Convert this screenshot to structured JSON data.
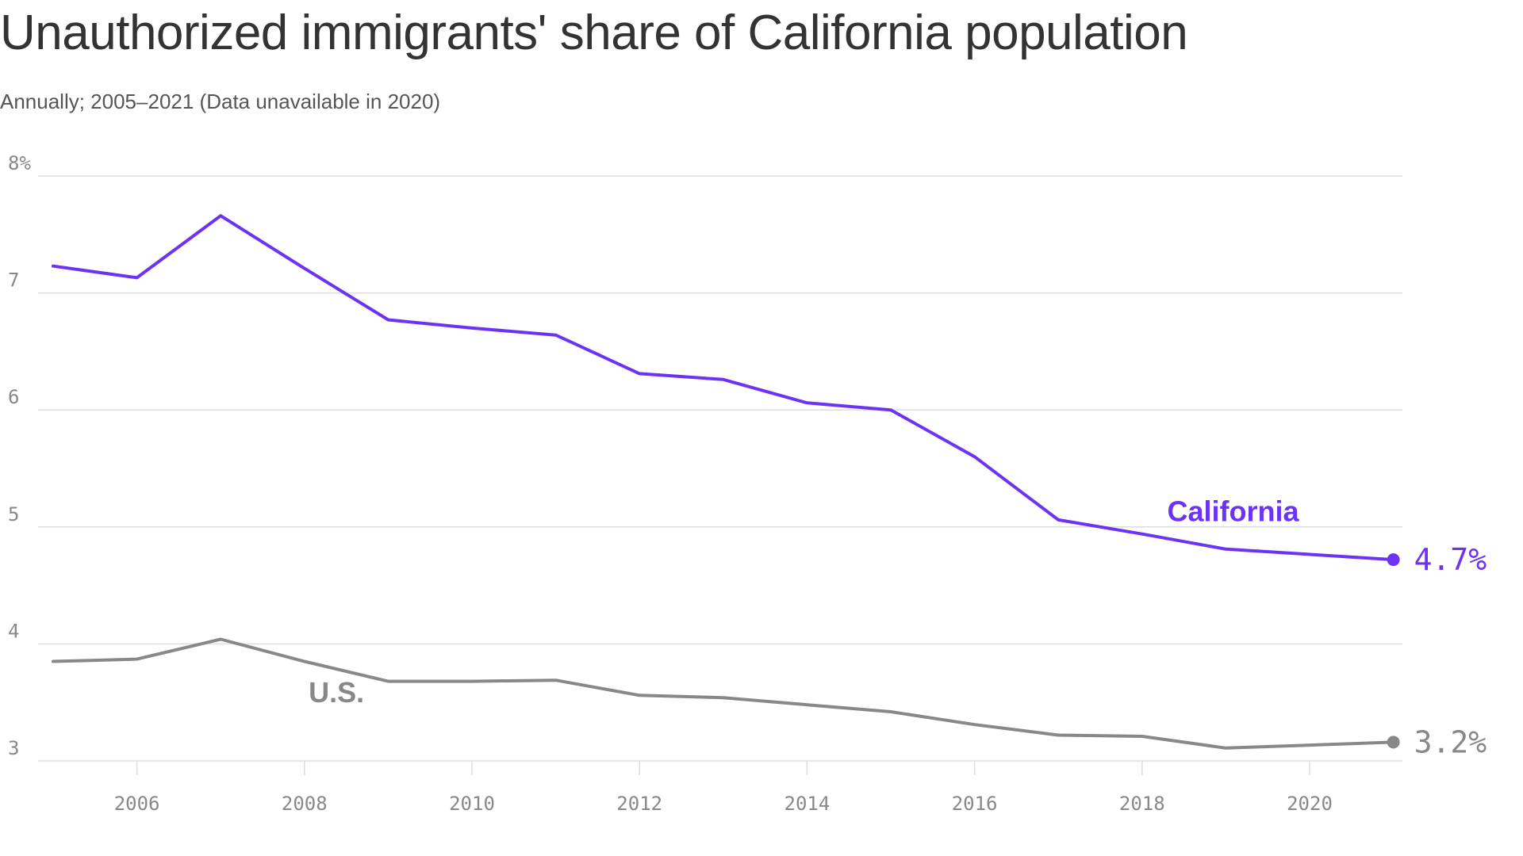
{
  "header": {
    "title": "Unauthorized immigrants' share of California population",
    "subtitle": "Annually; 2005–2021 (Data unavailable in 2020)"
  },
  "chart_data": {
    "type": "line",
    "title": "Unauthorized immigrants' share of California population",
    "subtitle": "Annually; 2005–2021 (Data unavailable in 2020)",
    "xlabel": "",
    "ylabel": "",
    "xlim": [
      2005,
      2021
    ],
    "ylim": [
      3,
      8
    ],
    "x_ticks": [
      2006,
      2008,
      2010,
      2012,
      2014,
      2016,
      2018,
      2020
    ],
    "x_tick_labels": [
      "2006",
      "2008",
      "2010",
      "2012",
      "2014",
      "2016",
      "2018",
      "2020"
    ],
    "y_ticks": [
      3,
      4,
      5,
      6,
      7,
      8
    ],
    "y_tick_labels": [
      "3",
      "4",
      "5",
      "6",
      "7",
      "8%"
    ],
    "grid": "horizontal",
    "legend": "none",
    "series": [
      {
        "name": "California",
        "color": "#6c33f5",
        "end_label": "4.7%",
        "points": [
          [
            2005,
            7.23
          ],
          [
            2006,
            7.13
          ],
          [
            2007,
            7.66
          ],
          [
            2008,
            7.21
          ],
          [
            2009,
            6.77
          ],
          [
            2010,
            6.7
          ],
          [
            2011,
            6.64
          ],
          [
            2012,
            6.31
          ],
          [
            2013,
            6.26
          ],
          [
            2014,
            6.06
          ],
          [
            2015,
            6.0
          ],
          [
            2016,
            5.6
          ],
          [
            2017,
            5.06
          ],
          [
            2018,
            4.94
          ],
          [
            2019,
            4.81
          ],
          [
            2021,
            4.72
          ]
        ]
      },
      {
        "name": "U.S.",
        "color": "#888888",
        "end_label": "3.2%",
        "points": [
          [
            2005,
            3.85
          ],
          [
            2006,
            3.87
          ],
          [
            2007,
            4.04
          ],
          [
            2008,
            3.85
          ],
          [
            2009,
            3.68
          ],
          [
            2010,
            3.68
          ],
          [
            2011,
            3.69
          ],
          [
            2012,
            3.56
          ],
          [
            2013,
            3.54
          ],
          [
            2014,
            3.48
          ],
          [
            2015,
            3.42
          ],
          [
            2016,
            3.31
          ],
          [
            2017,
            3.22
          ],
          [
            2018,
            3.21
          ],
          [
            2019,
            3.11
          ],
          [
            2021,
            3.16
          ]
        ]
      }
    ]
  }
}
